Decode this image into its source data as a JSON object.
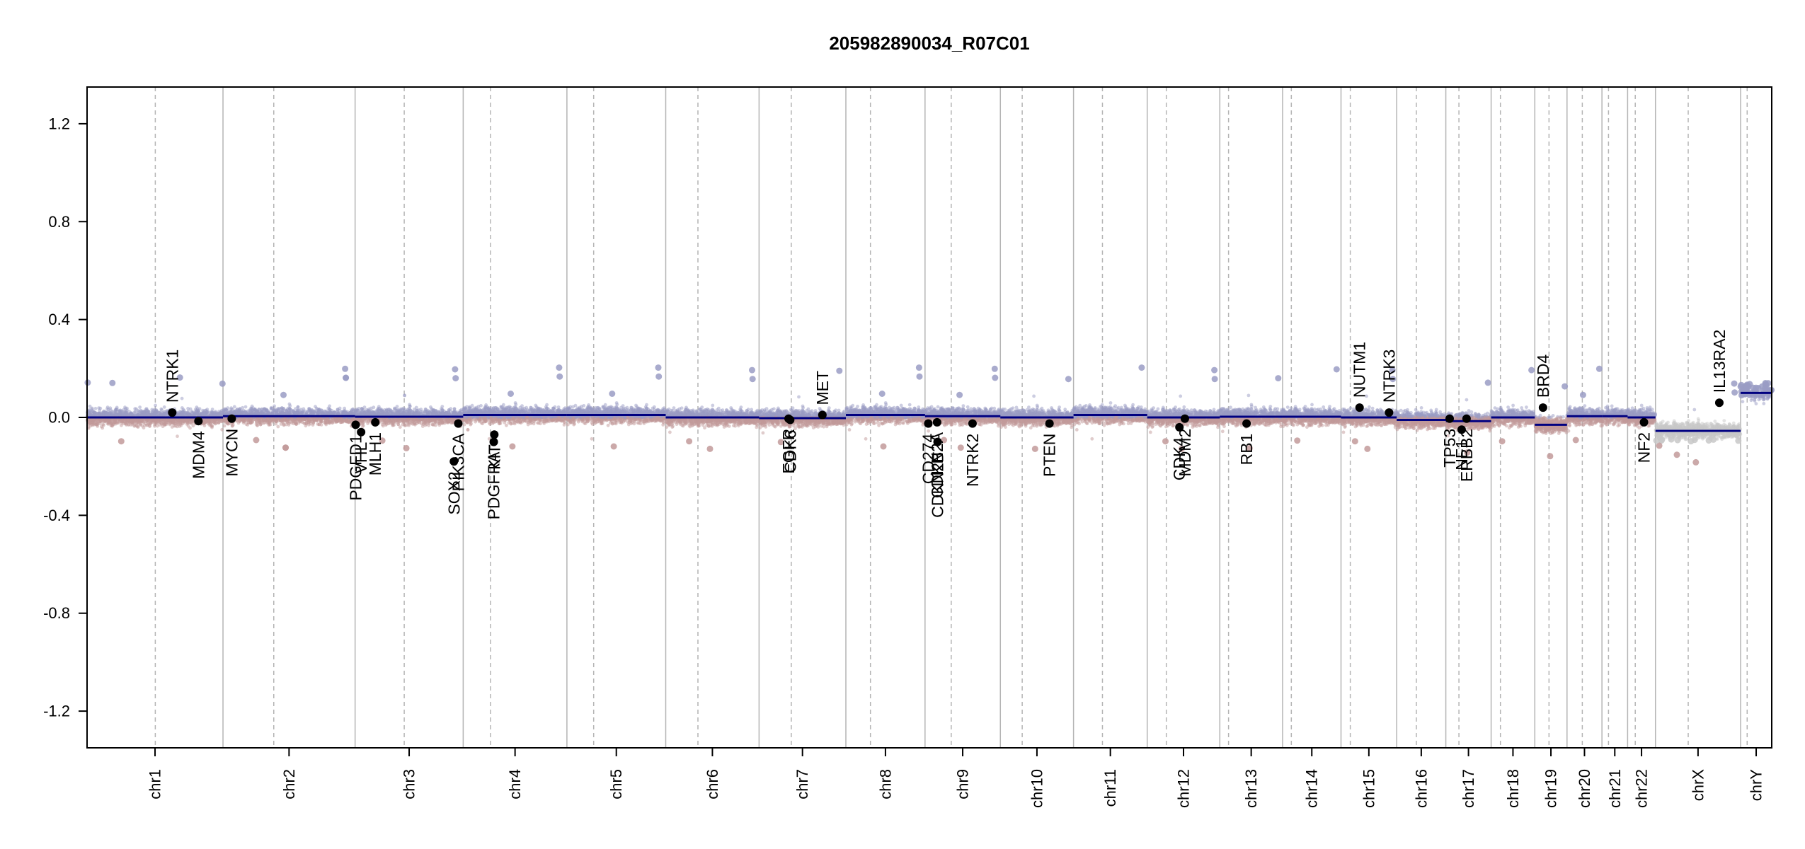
{
  "chart_data": {
    "type": "scatter",
    "title": "205982890034_R07C01",
    "xlabel": "",
    "ylabel": "",
    "ylim": [
      -1.35,
      1.35
    ],
    "yticks": [
      -1.2,
      -0.8,
      -0.4,
      0.0,
      0.4,
      0.8,
      1.2
    ],
    "ytick_labels": [
      "-1.2",
      "-0.8",
      "-0.4",
      "0.0",
      "0.4",
      "0.8",
      "1.2"
    ],
    "grid": false,
    "colors": {
      "gain": "#9a9cc4",
      "loss": "#c29a9a",
      "neutral": "#c8c8c8",
      "segment": "#000080",
      "gene": "#000000",
      "boundary": "#b4b4b4"
    },
    "chromosomes": [
      {
        "name": "chr1",
        "start": 0,
        "end": 249
      },
      {
        "name": "chr2",
        "start": 249,
        "end": 491
      },
      {
        "name": "chr3",
        "start": 491,
        "end": 689
      },
      {
        "name": "chr4",
        "start": 689,
        "end": 879
      },
      {
        "name": "chr5",
        "start": 879,
        "end": 1060
      },
      {
        "name": "chr6",
        "start": 1060,
        "end": 1231
      },
      {
        "name": "chr7",
        "start": 1231,
        "end": 1390
      },
      {
        "name": "chr8",
        "start": 1390,
        "end": 1535
      },
      {
        "name": "chr9",
        "start": 1535,
        "end": 1673
      },
      {
        "name": "chr10",
        "start": 1673,
        "end": 1807
      },
      {
        "name": "chr11",
        "start": 1807,
        "end": 1942
      },
      {
        "name": "chr12",
        "start": 1942,
        "end": 2075
      },
      {
        "name": "chr13",
        "start": 2075,
        "end": 2190
      },
      {
        "name": "chr14",
        "start": 2190,
        "end": 2297
      },
      {
        "name": "chr15",
        "start": 2297,
        "end": 2399
      },
      {
        "name": "chr16",
        "start": 2399,
        "end": 2489
      },
      {
        "name": "chr17",
        "start": 2489,
        "end": 2572
      },
      {
        "name": "chr18",
        "start": 2572,
        "end": 2652
      },
      {
        "name": "chr19",
        "start": 2652,
        "end": 2711
      },
      {
        "name": "chr20",
        "start": 2711,
        "end": 2775
      },
      {
        "name": "chr21",
        "start": 2775,
        "end": 2822
      },
      {
        "name": "chr22",
        "start": 2822,
        "end": 2873
      },
      {
        "name": "chrX",
        "start": 2873,
        "end": 3029
      },
      {
        "name": "chrY",
        "start": 3029,
        "end": 3086
      }
    ],
    "centromeres": [
      125,
      342,
      581,
      739,
      928,
      1119,
      1290,
      1435,
      1583,
      1713,
      1860,
      1977,
      2091,
      2206,
      2314,
      2435,
      2513,
      2589,
      2678,
      2739,
      2787,
      2836,
      2933,
      3041
    ],
    "segments": [
      {
        "start": 0,
        "end": 249,
        "value": 0.0
      },
      {
        "start": 249,
        "end": 491,
        "value": 0.005
      },
      {
        "start": 491,
        "end": 689,
        "value": 0.003
      },
      {
        "start": 689,
        "end": 879,
        "value": 0.01
      },
      {
        "start": 879,
        "end": 1060,
        "value": 0.01
      },
      {
        "start": 1060,
        "end": 1231,
        "value": 0.0
      },
      {
        "start": 1231,
        "end": 1390,
        "value": -0.003
      },
      {
        "start": 1390,
        "end": 1535,
        "value": 0.01
      },
      {
        "start": 1535,
        "end": 1673,
        "value": 0.005
      },
      {
        "start": 1673,
        "end": 1807,
        "value": 0.0
      },
      {
        "start": 1807,
        "end": 1942,
        "value": 0.01
      },
      {
        "start": 1942,
        "end": 2075,
        "value": 0.0
      },
      {
        "start": 2075,
        "end": 2190,
        "value": 0.003
      },
      {
        "start": 2190,
        "end": 2297,
        "value": 0.003
      },
      {
        "start": 2297,
        "end": 2399,
        "value": 0.0
      },
      {
        "start": 2399,
        "end": 2489,
        "value": -0.01
      },
      {
        "start": 2489,
        "end": 2572,
        "value": -0.015
      },
      {
        "start": 2572,
        "end": 2652,
        "value": 0.0
      },
      {
        "start": 2652,
        "end": 2711,
        "value": -0.03
      },
      {
        "start": 2711,
        "end": 2775,
        "value": 0.005
      },
      {
        "start": 2775,
        "end": 2822,
        "value": 0.005
      },
      {
        "start": 2822,
        "end": 2873,
        "value": 0.0
      },
      {
        "start": 2873,
        "end": 3029,
        "value": -0.055
      },
      {
        "start": 3029,
        "end": 3086,
        "value": 0.1
      }
    ],
    "genes": [
      {
        "name": "NTRK1",
        "pos": 156,
        "value": 0.02,
        "label": "above"
      },
      {
        "name": "MDM4",
        "pos": 204,
        "value": -0.015,
        "label": "below"
      },
      {
        "name": "MYCN",
        "pos": 265,
        "value": -0.005,
        "label": "below"
      },
      {
        "name": "PDGFD1",
        "pos": 492,
        "value": -0.03,
        "label": "below"
      },
      {
        "name": "VHL",
        "pos": 502,
        "value": -0.06,
        "label": "below"
      },
      {
        "name": "MLH1",
        "pos": 528,
        "value": -0.02,
        "label": "below"
      },
      {
        "name": "SOX2",
        "pos": 672,
        "value": -0.18,
        "label": "below"
      },
      {
        "name": "PIK3CA",
        "pos": 680,
        "value": -0.025,
        "label": "below"
      },
      {
        "name": "PDGFRA",
        "pos": 745,
        "value": -0.1,
        "label": "below"
      },
      {
        "name": "KIT",
        "pos": 746,
        "value": -0.07,
        "label": "below"
      },
      {
        "name": "EGFR",
        "pos": 1285,
        "value": -0.005,
        "label": "below"
      },
      {
        "name": "CDK6",
        "pos": 1288,
        "value": -0.01,
        "label": "below"
      },
      {
        "name": "MET",
        "pos": 1347,
        "value": 0.01,
        "label": "above"
      },
      {
        "name": "CD274",
        "pos": 1541,
        "value": -0.025,
        "label": "below"
      },
      {
        "name": "CDKN2A",
        "pos": 1557,
        "value": -0.02,
        "label": "below"
      },
      {
        "name": "CDKN2B",
        "pos": 1558,
        "value": -0.1,
        "label": "below"
      },
      {
        "name": "NTRK2",
        "pos": 1622,
        "value": -0.025,
        "label": "below"
      },
      {
        "name": "PTEN",
        "pos": 1763,
        "value": -0.025,
        "label": "below"
      },
      {
        "name": "CDK4",
        "pos": 2001,
        "value": -0.04,
        "label": "below"
      },
      {
        "name": "MDM2",
        "pos": 2011,
        "value": -0.005,
        "label": "below"
      },
      {
        "name": "RB1",
        "pos": 2124,
        "value": -0.025,
        "label": "below"
      },
      {
        "name": "NUTM1",
        "pos": 2331,
        "value": 0.04,
        "label": "above"
      },
      {
        "name": "NTRK3",
        "pos": 2385,
        "value": 0.02,
        "label": "above"
      },
      {
        "name": "TP53",
        "pos": 2496,
        "value": -0.005,
        "label": "below"
      },
      {
        "name": "NF1",
        "pos": 2518,
        "value": -0.05,
        "label": "below"
      },
      {
        "name": "ERBB2",
        "pos": 2527,
        "value": -0.005,
        "label": "below"
      },
      {
        "name": "BRD4",
        "pos": 2667,
        "value": 0.04,
        "label": "above"
      },
      {
        "name": "NF2",
        "pos": 2852,
        "value": -0.02,
        "label": "below"
      },
      {
        "name": "IL13RA2",
        "pos": 2990,
        "value": 0.06,
        "label": "above"
      }
    ]
  }
}
